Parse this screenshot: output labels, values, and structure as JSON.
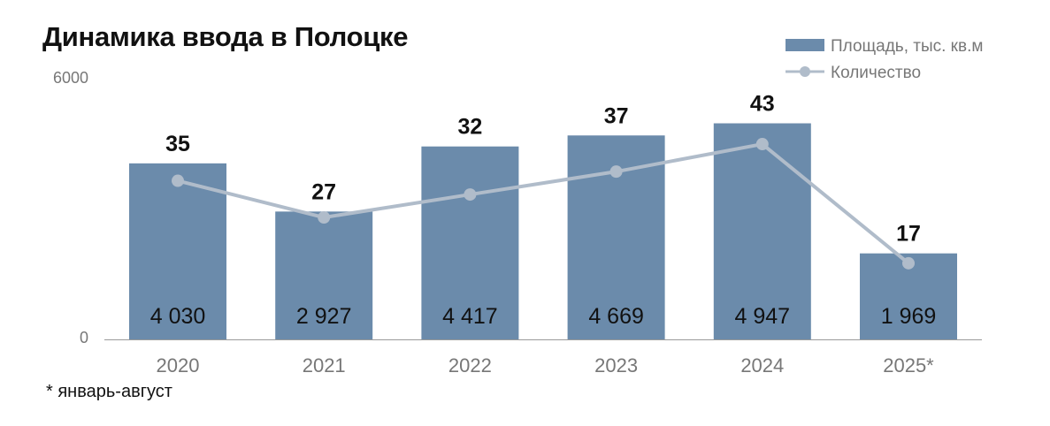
{
  "colors": {
    "bar": "#6b8bab",
    "line": "#b0bcca",
    "text": "#111111",
    "axis_text": "#777777",
    "baseline": "#9a9a9a"
  },
  "chart_data": {
    "type": "bar",
    "title": "Динамика ввода в Полоцке",
    "categories": [
      "2020",
      "2021",
      "2022",
      "2023",
      "2024",
      "2025*"
    ],
    "series": [
      {
        "name": "Площадь, тыс. кв.м",
        "type": "bar",
        "values": [
          4030,
          2927,
          4417,
          4669,
          4947,
          1969
        ],
        "labels": [
          "4 030",
          "2 927",
          "4 417",
          "4 669",
          "4 947",
          "1 969"
        ]
      },
      {
        "name": "Количество",
        "type": "line",
        "values": [
          35,
          27,
          32,
          37,
          43,
          17
        ],
        "labels": [
          "35",
          "27",
          "32",
          "37",
          "43",
          "17"
        ]
      }
    ],
    "ylim": [
      0,
      6000
    ],
    "yticks": [
      "0",
      "6000"
    ],
    "legend": "top-right",
    "grid": false,
    "footnote": "* январь-август"
  }
}
